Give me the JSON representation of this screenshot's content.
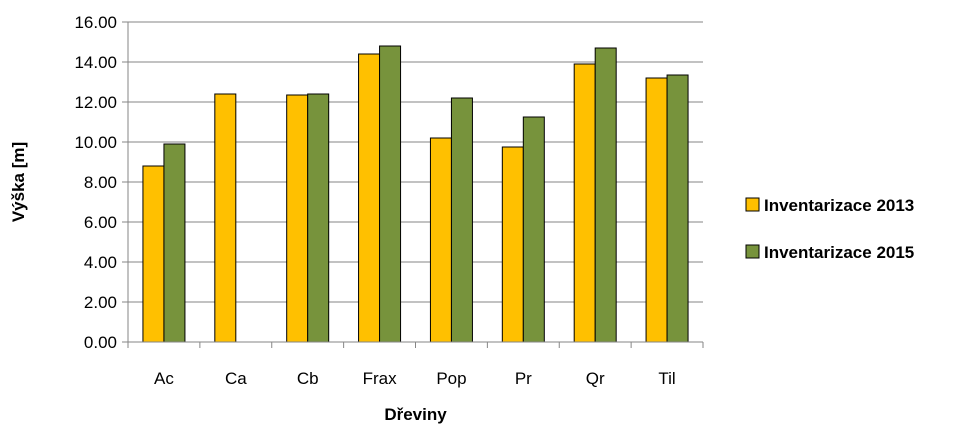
{
  "chart_data": {
    "type": "bar",
    "categories": [
      "Ac",
      "Ca",
      "Cb",
      "Frax",
      "Pop",
      "Pr",
      "Qr",
      "Til"
    ],
    "series": [
      {
        "name": "Inventarizace 2013",
        "color": "#FFC000",
        "values": [
          8.8,
          12.4,
          12.35,
          14.4,
          10.2,
          9.75,
          13.9,
          13.2
        ]
      },
      {
        "name": "Inventarizace 2015",
        "color": "#77933C",
        "values": [
          9.9,
          null,
          12.4,
          14.8,
          12.2,
          11.25,
          14.7,
          13.35
        ]
      }
    ],
    "xlabel": "Dřeviny",
    "ylabel": "Výška [m]",
    "ylim": [
      0,
      16
    ],
    "y_ticks": [
      "0.00",
      "2.00",
      "4.00",
      "6.00",
      "8.00",
      "10.00",
      "12.00",
      "14.00",
      "16.00"
    ],
    "grid": "horizontal",
    "legend_position": "right"
  }
}
